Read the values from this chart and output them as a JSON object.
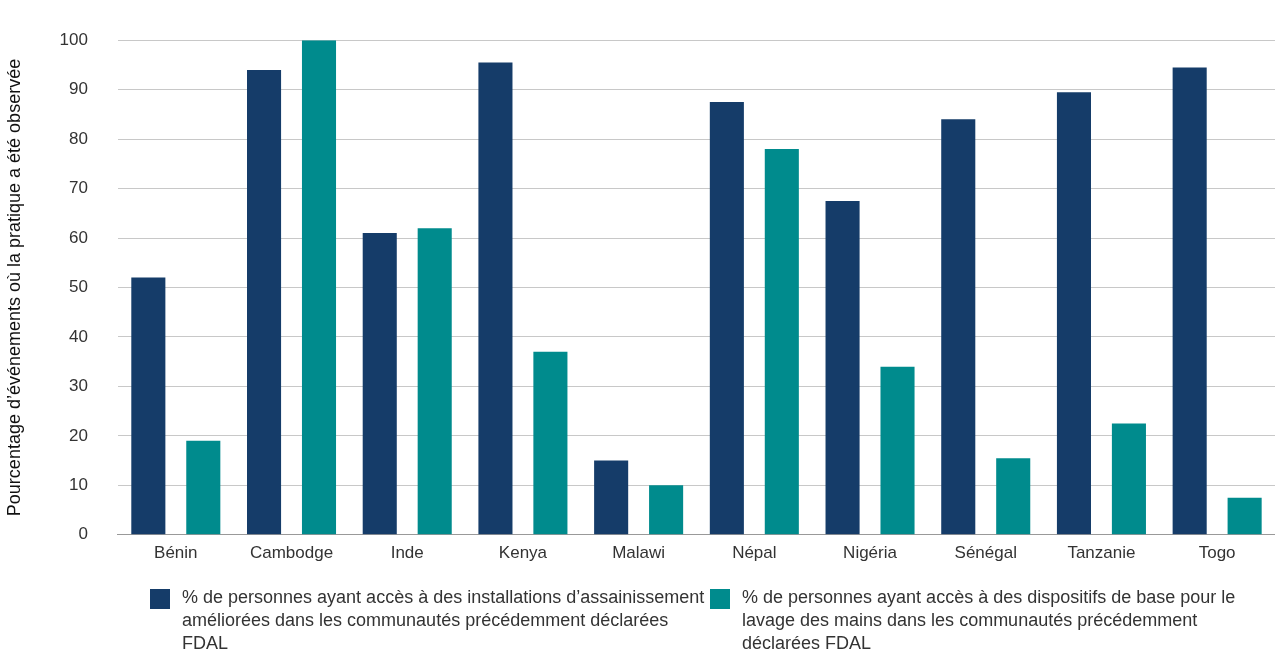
{
  "chart_data": {
    "type": "bar",
    "ylabel": "Pourcentage d’événements où la pratique a été observée",
    "categories": [
      "Bénin",
      "Cambodge",
      "Inde",
      "Kenya",
      "Malawi",
      "Népal",
      "Nigéria",
      "Sénégal",
      "Tanzanie",
      "Togo"
    ],
    "series": [
      {
        "name": "% de personnes ayant accès à des installations d’assainissement améliorées dans les communautés précédemment déclarées FDAL",
        "color": "#153c69",
        "values": [
          52,
          94,
          61,
          95.5,
          15,
          87.5,
          67.5,
          84,
          89.5,
          94.5
        ]
      },
      {
        "name": "% de personnes ayant accès à des dispositifs de base pour le lavage des mains dans les communautés précédemment déclarées FDAL",
        "color": "#008b8d",
        "values": [
          19,
          100,
          62,
          37,
          10,
          78,
          34,
          15.5,
          22.5,
          7.5
        ]
      }
    ],
    "ylim": [
      0,
      100
    ],
    "yticks": [
      0,
      10,
      20,
      30,
      40,
      50,
      60,
      70,
      80,
      90,
      100
    ],
    "grid": "y",
    "legend": "bottom"
  }
}
